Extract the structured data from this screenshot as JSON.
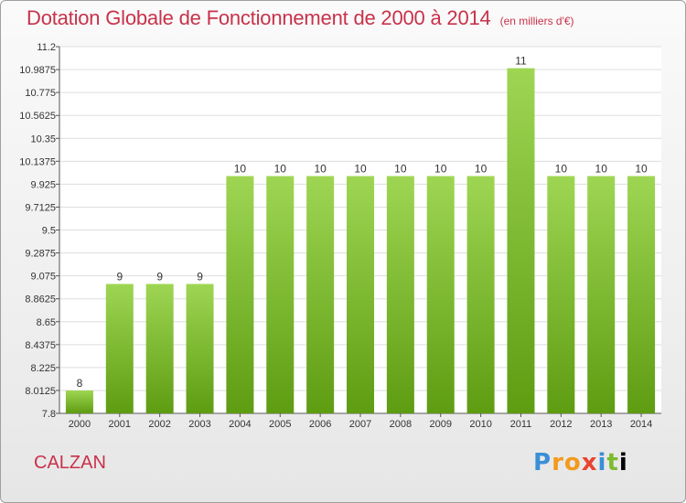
{
  "header": {
    "title": "Dotation Globale de Fonctionnement de 2000 à 2014",
    "unit": "(en milliers d'€)"
  },
  "footer": {
    "commune": "CALZAN",
    "logo_letters": [
      "P",
      "r",
      "o",
      "x",
      "i",
      "t",
      "i"
    ]
  },
  "colors": {
    "bar_top": "#9ed653",
    "bar_bottom": "#5e9c12",
    "title": "#c8324a",
    "grid": "#dddddd"
  },
  "chart_data": {
    "type": "bar",
    "title": "Dotation Globale de Fonctionnement de 2000 à 2014",
    "categories": [
      "2000",
      "2001",
      "2002",
      "2003",
      "2004",
      "2005",
      "2006",
      "2007",
      "2008",
      "2009",
      "2010",
      "2011",
      "2012",
      "2013",
      "2014"
    ],
    "values": [
      8.0125,
      9.0,
      9.0,
      9.0,
      10.0,
      10.0,
      10.0,
      10.0,
      10.0,
      10.0,
      10.0,
      11.0,
      10.0,
      10.0,
      10.0
    ],
    "data_labels": [
      "8",
      "9",
      "9",
      "9",
      "10",
      "10",
      "10",
      "10",
      "10",
      "10",
      "10",
      "11",
      "10",
      "10",
      "10"
    ],
    "yticks": [
      7.8,
      8.0125,
      8.225,
      8.4375,
      8.65,
      8.8625,
      9.075,
      9.2875,
      9.5,
      9.7125,
      9.925,
      10.1375,
      10.35,
      10.5625,
      10.775,
      10.9875,
      11.2
    ],
    "ytick_labels": [
      "7.8",
      "8.0125",
      "8.225",
      "8.4375",
      "8.65",
      "8.8625",
      "9.075",
      "9.2875",
      "9.5",
      "9.7125",
      "9.925",
      "10.1375",
      "10.35",
      "10.5625",
      "10.775",
      "10.9875",
      "11.2"
    ],
    "ylim": [
      7.8,
      11.2
    ],
    "xlabel": "",
    "ylabel": "",
    "grid": true,
    "legend": "none"
  }
}
